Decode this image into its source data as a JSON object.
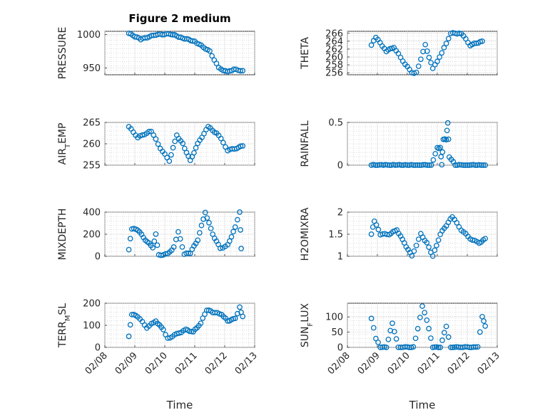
{
  "figure": {
    "title": "Figure 2 medium",
    "marker_color": "#0072BD"
  },
  "chart_data": [
    {
      "id": "pressure",
      "type": "scatter",
      "ylabel": "PRESSURE",
      "title": "Figure 2 medium",
      "ylim": [
        940,
        1005
      ],
      "yticks": [
        950,
        1000
      ],
      "xlim": [
        0,
        5
      ],
      "xticks": [
        "02/08",
        "02/09",
        "02/10",
        "02/11",
        "02/12",
        "02/13"
      ],
      "t": [
        0.8,
        1.2,
        1.7,
        2.2,
        2.6,
        3.0,
        3.5,
        3.8,
        4.1,
        4.3,
        4.6
      ],
      "v": [
        1002,
        993,
        1000,
        1001,
        995,
        990,
        975,
        950,
        944,
        948,
        946
      ]
    },
    {
      "id": "theta",
      "type": "scatter",
      "ylabel": "THETA",
      "xlabel": "",
      "ylim": [
        255.5,
        266.5
      ],
      "yticks": [
        256,
        258,
        260,
        262,
        264,
        266
      ],
      "xlim": [
        0,
        5
      ],
      "xticks": [
        "02/08",
        "02/09",
        "02/10",
        "02/11",
        "02/12",
        "02/13"
      ],
      "t": [
        0.8,
        0.95,
        1.3,
        1.55,
        1.85,
        2.15,
        2.3,
        2.6,
        2.85,
        3.15,
        3.45,
        3.8,
        4.1,
        4.5
      ],
      "v": [
        263,
        265,
        261.5,
        262.5,
        259,
        256,
        256,
        263,
        257,
        261,
        266,
        266,
        263,
        264
      ]
    },
    {
      "id": "air_temp",
      "type": "scatter",
      "ylabel": "AIR_TEMP",
      "ylim": [
        255,
        265
      ],
      "yticks": [
        255,
        260,
        265
      ],
      "xlim": [
        0,
        5
      ],
      "xticks": [
        "02/08",
        "02/09",
        "02/10",
        "02/11",
        "02/12",
        "02/13"
      ],
      "t": [
        0.8,
        1.1,
        1.55,
        1.85,
        2.15,
        2.4,
        2.6,
        2.85,
        3.1,
        3.45,
        3.8,
        4.1,
        4.4,
        4.6
      ],
      "v": [
        264,
        261.5,
        263,
        259,
        256,
        262,
        260,
        256,
        260,
        264,
        262,
        258.5,
        259,
        259.5
      ]
    },
    {
      "id": "rainfall",
      "type": "scatter",
      "ylabel": "RAINFALL",
      "ylim": [
        0,
        0.5
      ],
      "yticks": [
        0,
        0.5
      ],
      "xlim": [
        0,
        5
      ],
      "xticks": [
        "02/08",
        "02/09",
        "02/10",
        "02/11",
        "02/12",
        "02/13"
      ],
      "t": [
        0.8,
        1.2,
        1.6,
        2.0,
        2.4,
        2.8,
        3.0,
        3.1,
        3.15,
        3.2,
        3.3,
        3.35,
        3.4,
        3.6,
        4.0,
        4.4,
        4.6
      ],
      "v": [
        0,
        0,
        0,
        0,
        0,
        0,
        0.2,
        0.2,
        0,
        0.3,
        0.3,
        0.5,
        0.1,
        0,
        0,
        0,
        0
      ]
    },
    {
      "id": "mixdepth",
      "type": "scatter",
      "ylabel": "MIXDEPTH",
      "ylim": [
        0,
        400
      ],
      "yticks": [
        0,
        200,
        400
      ],
      "xlim": [
        0,
        5
      ],
      "xticks": [
        "02/08",
        "02/09",
        "02/10",
        "02/11",
        "02/12",
        "02/13"
      ],
      "t": [
        0.8,
        0.9,
        1.1,
        1.35,
        1.6,
        1.7,
        1.8,
        2.1,
        2.3,
        2.45,
        2.65,
        2.85,
        3.1,
        3.35,
        3.6,
        3.85,
        4.1,
        4.35,
        4.5,
        4.55
      ],
      "v": [
        60,
        250,
        240,
        150,
        80,
        200,
        10,
        20,
        80,
        220,
        20,
        30,
        150,
        400,
        200,
        70,
        100,
        260,
        400,
        70
      ]
    },
    {
      "id": "h2omixra",
      "type": "scatter",
      "ylabel": "H2OMIXRA",
      "ylim": [
        1,
        2
      ],
      "yticks": [
        1,
        1.5,
        2
      ],
      "xlim": [
        0,
        5
      ],
      "xticks": [
        "02/08",
        "02/09",
        "02/10",
        "02/11",
        "02/12",
        "02/13"
      ],
      "t": [
        0.8,
        0.9,
        1.1,
        1.4,
        1.65,
        1.9,
        2.15,
        2.45,
        2.65,
        2.85,
        3.1,
        3.5,
        3.8,
        4.1,
        4.4,
        4.6
      ],
      "v": [
        1.5,
        1.8,
        1.5,
        1.5,
        1.6,
        1.3,
        1.0,
        1.5,
        1.3,
        1.0,
        1.5,
        1.9,
        1.6,
        1.4,
        1.3,
        1.4
      ]
    },
    {
      "id": "terr_msl",
      "type": "scatter",
      "ylabel": "TERR_MSL",
      "ylim": [
        0,
        200
      ],
      "yticks": [
        0,
        100,
        200
      ],
      "xlim": [
        0,
        5
      ],
      "xticks": [
        "02/08",
        "02/09",
        "02/10",
        "02/11",
        "02/12",
        "02/13"
      ],
      "t": [
        0.8,
        0.9,
        1.1,
        1.4,
        1.7,
        1.95,
        2.1,
        2.4,
        2.7,
        2.95,
        3.2,
        3.4,
        3.6,
        3.9,
        4.1,
        4.35,
        4.5,
        4.6
      ],
      "v": [
        50,
        150,
        140,
        90,
        120,
        80,
        40,
        60,
        80,
        70,
        110,
        170,
        160,
        150,
        120,
        130,
        180,
        140
      ]
    },
    {
      "id": "sun_flux",
      "type": "scatter",
      "ylabel": "SUN_FLUX",
      "ylim": [
        0,
        145
      ],
      "yticks": [
        0,
        50,
        100
      ],
      "xlim": [
        0,
        5
      ],
      "xticks": [
        "02/08",
        "02/09",
        "02/10",
        "02/11",
        "02/12",
        "02/13"
      ],
      "t": [
        0.8,
        0.95,
        1.1,
        1.3,
        1.5,
        1.7,
        2.0,
        2.2,
        2.35,
        2.5,
        2.65,
        2.85,
        3.1,
        3.3,
        3.45,
        3.7,
        4.0,
        4.35,
        4.5,
        4.6
      ],
      "v": [
        95,
        30,
        0,
        0,
        80,
        0,
        0,
        0,
        60,
        135,
        90,
        0,
        0,
        70,
        0,
        0,
        0,
        0,
        100,
        70
      ]
    }
  ],
  "ylabel_display": {
    "air_temp": [
      "AIR",
      "T",
      "EMP"
    ],
    "terr_msl": [
      "TERR",
      "M",
      "SL"
    ],
    "sun_flux": [
      "SUN",
      "F",
      "LUX"
    ]
  },
  "xlabel": "Time"
}
